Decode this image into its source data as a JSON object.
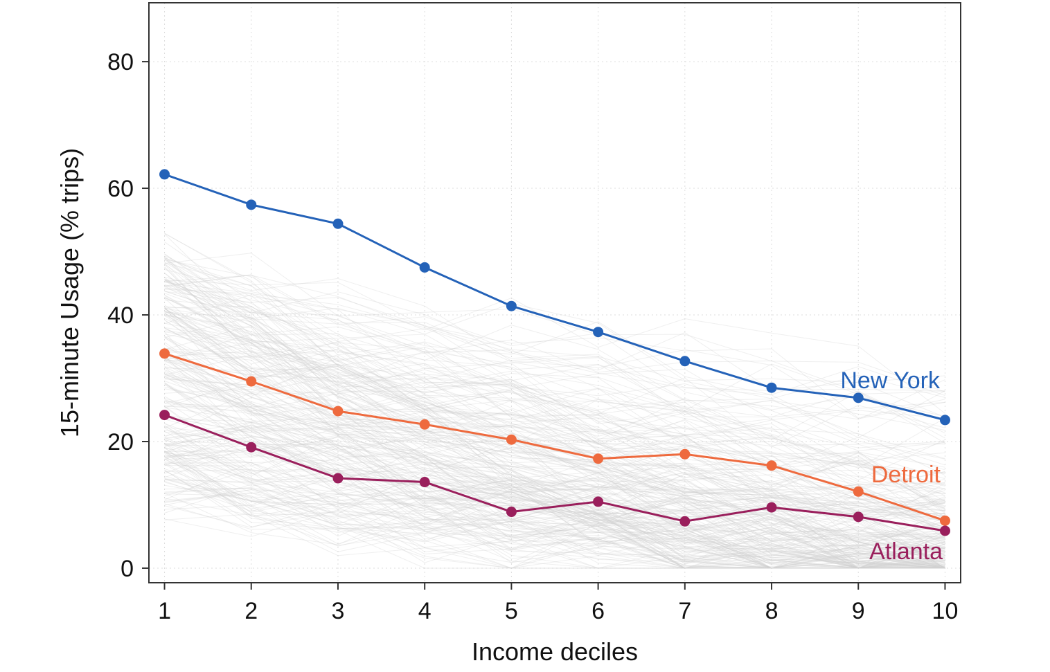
{
  "chart_data": {
    "type": "line",
    "title": "",
    "xlabel": "Income deciles",
    "ylabel": "15-minute Usage (% trips)",
    "xlim": [
      0.82,
      10.18
    ],
    "ylim": [
      -2.3,
      89.3
    ],
    "x_ticks": [
      1,
      2,
      3,
      4,
      5,
      6,
      7,
      8,
      9,
      10
    ],
    "y_ticks": [
      0,
      20,
      40,
      60,
      80
    ],
    "grid": true,
    "x": [
      1,
      2,
      3,
      4,
      5,
      6,
      7,
      8,
      9,
      10
    ],
    "background_series_color": "#d0d0d0",
    "series": [
      {
        "name": "New York",
        "color": "#2462b8",
        "values": [
          62.2,
          57.4,
          54.4,
          47.5,
          41.4,
          37.3,
          32.7,
          28.5,
          26.9,
          23.4
        ]
      },
      {
        "name": "Detroit",
        "color": "#ee6a3e",
        "values": [
          33.9,
          29.5,
          24.8,
          22.7,
          20.3,
          17.3,
          18.0,
          16.2,
          12.1,
          7.5
        ]
      },
      {
        "name": "Atlanta",
        "color": "#9a1f5c",
        "values": [
          24.2,
          19.1,
          14.2,
          13.6,
          8.9,
          10.5,
          7.4,
          9.6,
          8.1,
          5.9
        ]
      }
    ]
  }
}
